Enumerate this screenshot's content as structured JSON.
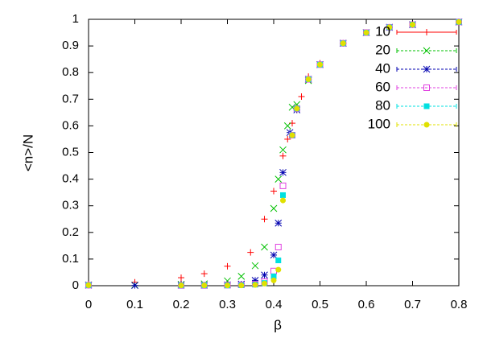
{
  "chart_data": {
    "type": "scatter",
    "xlabel": "β",
    "ylabel": "<n>/N",
    "xlim": [
      0,
      0.8
    ],
    "ylim": [
      0,
      1
    ],
    "xticks": [
      0,
      0.1,
      0.2,
      0.3,
      0.4,
      0.5,
      0.6,
      0.7,
      0.8
    ],
    "yticks": [
      0,
      0.1,
      0.2,
      0.3,
      0.4,
      0.5,
      0.6,
      0.7,
      0.8,
      0.9,
      1
    ],
    "legend": "top-right",
    "series": [
      {
        "name": "10",
        "color": "#ff0000",
        "x": [
          0,
          0.1,
          0.2,
          0.25,
          0.3,
          0.35,
          0.38,
          0.4,
          0.42,
          0.43,
          0.44,
          0.45,
          0.46,
          0.475,
          0.5,
          0.55,
          0.6,
          0.65,
          0.7,
          0.8
        ],
        "values": [
          0.005,
          0.013,
          0.03,
          0.045,
          0.073,
          0.125,
          0.25,
          0.355,
          0.487,
          0.55,
          0.61,
          0.66,
          0.71,
          0.785,
          0.835,
          0.91,
          0.95,
          0.97,
          0.98,
          0.99
        ]
      },
      {
        "name": "20",
        "color": "#00c000",
        "x": [
          0,
          0.1,
          0.2,
          0.25,
          0.3,
          0.33,
          0.36,
          0.38,
          0.4,
          0.41,
          0.42,
          0.43,
          0.44,
          0.45,
          0.475,
          0.5,
          0.55,
          0.6,
          0.65,
          0.7,
          0.8
        ],
        "values": [
          0.003,
          0.002,
          0.005,
          0.007,
          0.018,
          0.035,
          0.075,
          0.145,
          0.29,
          0.4,
          0.51,
          0.6,
          0.67,
          0.68,
          0.77,
          0.83,
          0.91,
          0.95,
          0.97,
          0.98,
          0.99
        ]
      },
      {
        "name": "40",
        "color": "#0000b0",
        "x": [
          0,
          0.1,
          0.2,
          0.25,
          0.3,
          0.33,
          0.36,
          0.38,
          0.4,
          0.41,
          0.42,
          0.435,
          0.45,
          0.475,
          0.5,
          0.55,
          0.6,
          0.65,
          0.7,
          0.8
        ],
        "values": [
          0.002,
          0.001,
          0.002,
          0.002,
          0.003,
          0.006,
          0.02,
          0.04,
          0.115,
          0.235,
          0.425,
          0.575,
          0.66,
          0.775,
          0.83,
          0.91,
          0.95,
          0.97,
          0.98,
          0.99
        ]
      },
      {
        "name": "60",
        "color": "#e040e0",
        "x": [
          0,
          0.2,
          0.25,
          0.3,
          0.33,
          0.36,
          0.38,
          0.4,
          0.41,
          0.42,
          0.44,
          0.45,
          0.475,
          0.5,
          0.55,
          0.6,
          0.65,
          0.7,
          0.8
        ],
        "values": [
          0.002,
          0.001,
          0.001,
          0.002,
          0.003,
          0.006,
          0.015,
          0.055,
          0.145,
          0.375,
          0.565,
          0.665,
          0.775,
          0.83,
          0.91,
          0.95,
          0.97,
          0.98,
          0.99
        ]
      },
      {
        "name": "80",
        "color": "#00e0e0",
        "x": [
          0,
          0.2,
          0.25,
          0.3,
          0.33,
          0.36,
          0.38,
          0.4,
          0.41,
          0.42,
          0.44,
          0.45,
          0.475,
          0.5,
          0.55,
          0.6,
          0.65,
          0.7,
          0.8
        ],
        "values": [
          0.002,
          0.001,
          0.001,
          0.001,
          0.002,
          0.004,
          0.01,
          0.035,
          0.095,
          0.34,
          0.565,
          0.665,
          0.775,
          0.83,
          0.91,
          0.95,
          0.97,
          0.98,
          0.99
        ]
      },
      {
        "name": "100",
        "color": "#e0e000",
        "x": [
          0,
          0.2,
          0.25,
          0.3,
          0.33,
          0.36,
          0.38,
          0.4,
          0.41,
          0.42,
          0.44,
          0.45,
          0.475,
          0.5,
          0.55,
          0.6,
          0.65,
          0.7,
          0.8
        ],
        "values": [
          0.002,
          0.001,
          0.001,
          0.001,
          0.001,
          0.003,
          0.008,
          0.02,
          0.06,
          0.32,
          0.565,
          0.665,
          0.775,
          0.83,
          0.91,
          0.95,
          0.97,
          0.98,
          0.99
        ]
      }
    ]
  }
}
